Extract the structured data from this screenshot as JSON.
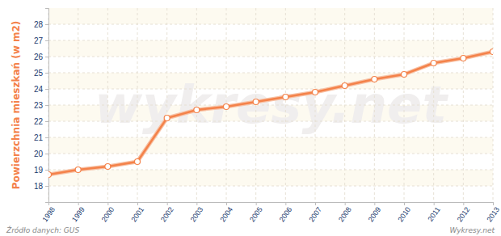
{
  "chart_data": {
    "type": "line",
    "y_label": "Powierzchnia mieszkań (w m2)",
    "source": "Źródło danych:  GUS",
    "credit": "Wykresy.net",
    "watermark": "wykresy.net",
    "x": [
      1998,
      1999,
      2000,
      2001,
      2002,
      2003,
      2004,
      2005,
      2006,
      2007,
      2008,
      2009,
      2010,
      2011,
      2012,
      2013
    ],
    "series": [
      {
        "name": "Powierzchnia mieszkań",
        "color": "#f4824a",
        "marker": "circle",
        "values": [
          18.7,
          19.0,
          19.2,
          19.5,
          22.2,
          22.7,
          22.9,
          23.2,
          23.5,
          23.8,
          24.2,
          24.6,
          24.9,
          25.6,
          25.9,
          26.3
        ]
      }
    ],
    "xlim": [
      1998,
      2013
    ],
    "xticks": [
      1998,
      1999,
      2000,
      2001,
      2002,
      2003,
      2004,
      2005,
      2006,
      2007,
      2008,
      2009,
      2010,
      2011,
      2012,
      2013
    ],
    "ylim": [
      17,
      29
    ],
    "yticks": [
      18,
      19,
      20,
      21,
      22,
      23,
      24,
      25,
      26,
      27,
      28
    ],
    "grid": true
  }
}
